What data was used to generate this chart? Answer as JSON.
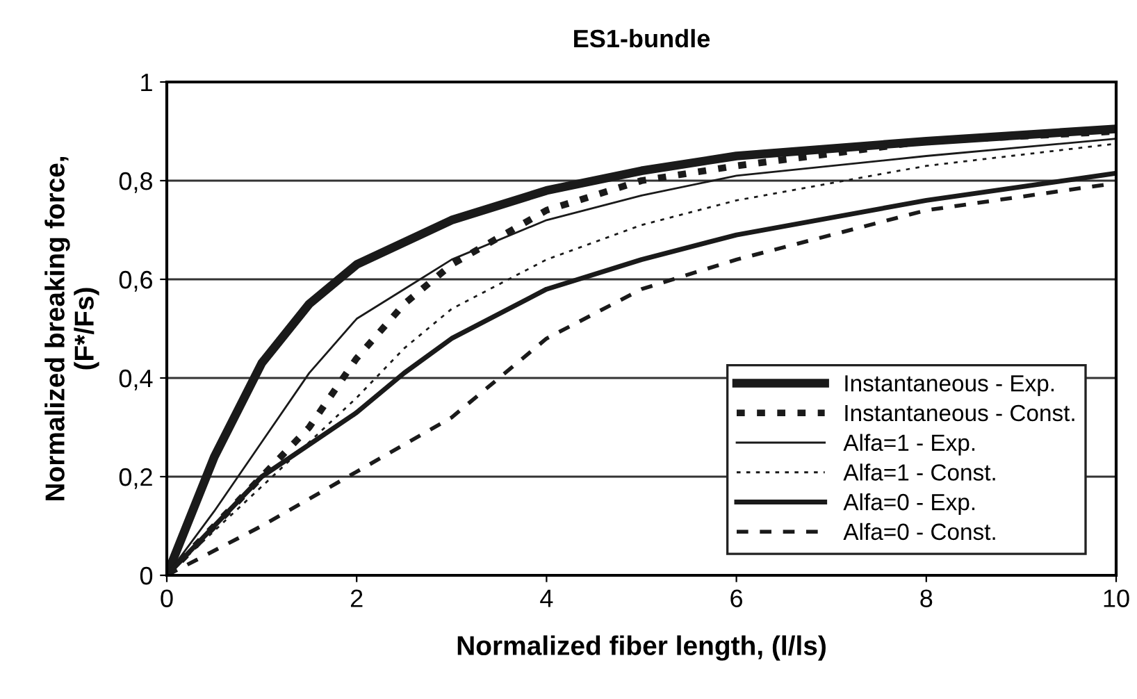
{
  "chart_data": {
    "type": "line",
    "title": "ES1-bundle",
    "xlabel": "Normalized fiber length, (l/ls)",
    "ylabel": "Normalized breaking force,\n(F*/Fs)",
    "xlim": [
      0,
      10
    ],
    "xticks": [
      0,
      2,
      4,
      6,
      8,
      10
    ],
    "ylim": [
      0,
      1
    ],
    "yticks": [
      0,
      {
        "value": 0.2,
        "label": "0,2"
      },
      {
        "value": 0.4,
        "label": "0,4"
      },
      {
        "value": 0.6,
        "label": "0,6"
      },
      {
        "value": 0.8,
        "label": "0,8"
      },
      1
    ],
    "grid": "y",
    "legend": "right",
    "marker": "none",
    "series": [
      {
        "name": "Instantaneous - Exp.",
        "color": "#1a1a1a",
        "line_style": "solid",
        "x": [
          0,
          0.5,
          1,
          1.5,
          2,
          3,
          4,
          5,
          6,
          8,
          10
        ],
        "values": [
          0,
          0.24,
          0.43,
          0.55,
          0.63,
          0.72,
          0.78,
          0.82,
          0.85,
          0.88,
          0.905
        ]
      },
      {
        "name": "Instantaneous - Const.",
        "color": "#1a1a1a",
        "line_style": "dashed",
        "x": [
          0,
          0.5,
          1,
          1.5,
          2,
          2.5,
          3,
          4,
          5,
          6,
          8,
          10
        ],
        "values": [
          0,
          0.1,
          0.2,
          0.3,
          0.44,
          0.55,
          0.63,
          0.74,
          0.8,
          0.83,
          0.88,
          0.9
        ]
      },
      {
        "name": "Alfa=1 - Exp.",
        "color": "#1a1a1a",
        "line_style": "solid",
        "x": [
          0,
          0.5,
          1,
          1.5,
          2,
          2.5,
          3,
          4,
          5,
          6,
          8,
          10
        ],
        "values": [
          0,
          0.13,
          0.27,
          0.41,
          0.52,
          0.58,
          0.64,
          0.72,
          0.77,
          0.81,
          0.85,
          0.885
        ]
      },
      {
        "name": "Alfa=1 - Const.",
        "color": "#1a1a1a",
        "line_style": "dotted",
        "x": [
          0,
          1,
          2,
          2.5,
          3,
          4,
          5,
          6,
          8,
          10
        ],
        "values": [
          0,
          0.18,
          0.36,
          0.46,
          0.54,
          0.64,
          0.71,
          0.76,
          0.83,
          0.875
        ]
      },
      {
        "name": "Alfa=0 - Exp.",
        "color": "#1a1a1a",
        "line_style": "solid",
        "x": [
          0,
          1,
          2,
          2.5,
          3,
          4,
          5,
          6,
          8,
          10
        ],
        "values": [
          0,
          0.2,
          0.33,
          0.41,
          0.48,
          0.58,
          0.64,
          0.69,
          0.76,
          0.815
        ]
      },
      {
        "name": "Alfa=0 - Const.",
        "color": "#1a1a1a",
        "line_style": "dashed",
        "x": [
          0,
          1,
          2,
          3,
          4,
          5,
          6,
          7,
          8,
          10
        ],
        "values": [
          0,
          0.1,
          0.21,
          0.32,
          0.48,
          0.58,
          0.64,
          0.69,
          0.74,
          0.795
        ]
      }
    ]
  }
}
